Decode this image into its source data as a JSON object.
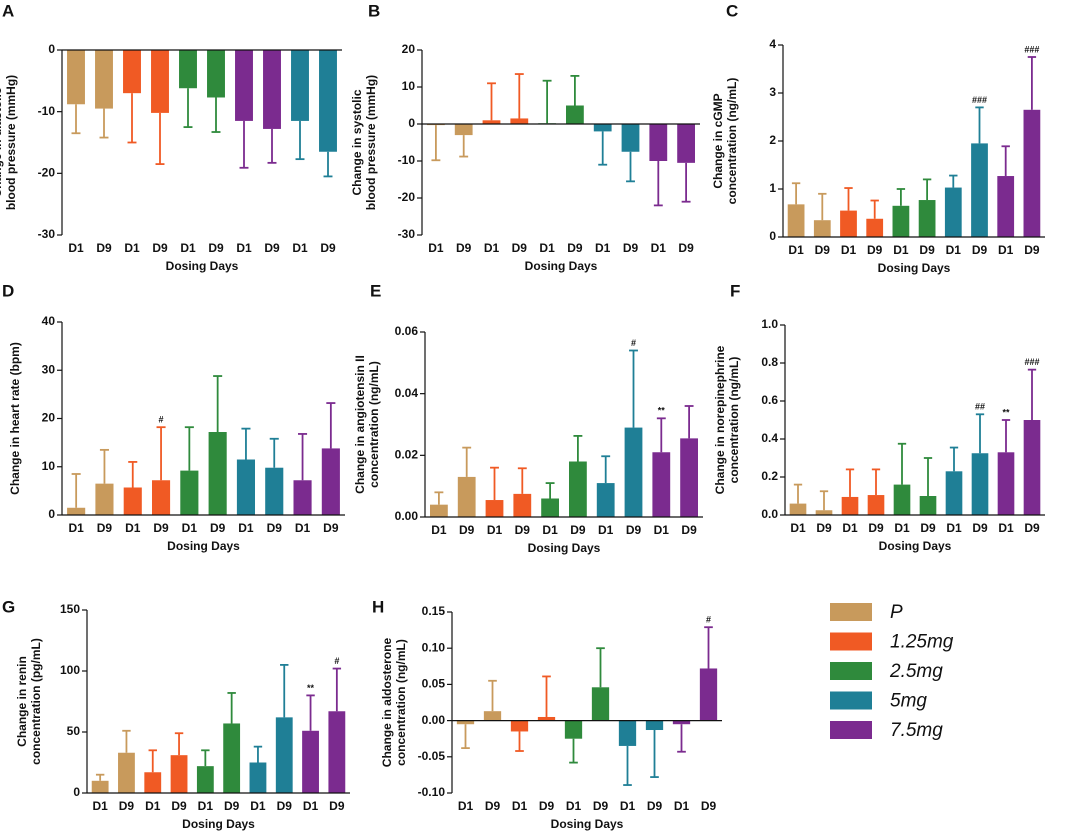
{
  "legend": [
    {
      "name": "P",
      "color": "#c89a5c"
    },
    {
      "name": "1.25mg",
      "color": "#f05a24"
    },
    {
      "name": "2.5mg",
      "color": "#2f8a3c"
    },
    {
      "name": "5mg",
      "color": "#1f7f96"
    },
    {
      "name": "7.5mg",
      "color": "#7b2b8f"
    }
  ],
  "chart_data": [
    {
      "type": "bar",
      "panel": "A",
      "ylabel": [
        "Change in diastolic",
        "blood pressure (mmHg)"
      ],
      "xlabel": "Dosing Days",
      "categories": [
        "D1",
        "D9",
        "D1",
        "D9",
        "D1",
        "D9",
        "D1",
        "D9",
        "D1",
        "D9"
      ],
      "values": [
        -8.8,
        -9.5,
        -7,
        -10.2,
        -6.2,
        -7.7,
        -11.5,
        -12.8,
        -11.5,
        -16.5
      ],
      "errors": [
        4.7,
        4.7,
        8,
        8.3,
        6.3,
        5.6,
        7.6,
        5.5,
        6.2,
        4
      ],
      "colors": [
        "#c89a5c",
        "#c89a5c",
        "#f05a24",
        "#f05a24",
        "#2f8a3c",
        "#2f8a3c",
        "#7b2b8f",
        "#7b2b8f",
        "#1f7f96",
        "#1f7f96"
      ],
      "annotations": [
        null,
        null,
        null,
        null,
        null,
        null,
        null,
        null,
        null,
        null
      ],
      "ylim": [
        -30,
        0
      ],
      "yticks": [
        0,
        -10,
        -20,
        -30
      ]
    },
    {
      "type": "bar",
      "panel": "B",
      "ylabel": [
        "Change in systolic",
        "blood pressure (mmHg)"
      ],
      "xlabel": "Dosing Days",
      "categories": [
        "D1",
        "D9",
        "D1",
        "D9",
        "D1",
        "D9",
        "D1",
        "D9",
        "D1",
        "D9"
      ],
      "values": [
        -0.3,
        -3,
        1,
        1.5,
        0.2,
        5,
        -2,
        -7.5,
        -10,
        -10.5
      ],
      "errors": [
        9.5,
        5.8,
        10,
        12,
        11.5,
        8,
        9,
        8,
        12,
        10.5
      ],
      "colors": [
        "#c89a5c",
        "#c89a5c",
        "#f05a24",
        "#f05a24",
        "#2f8a3c",
        "#2f8a3c",
        "#1f7f96",
        "#1f7f96",
        "#7b2b8f",
        "#7b2b8f"
      ],
      "annotations": [
        null,
        null,
        null,
        null,
        null,
        null,
        null,
        null,
        null,
        null
      ],
      "ylim": [
        -30,
        20
      ],
      "yticks": [
        20,
        10,
        0,
        -10,
        -20,
        -30
      ]
    },
    {
      "type": "bar",
      "panel": "C",
      "ylabel": [
        "Change in cGMP",
        "concentration (ng/mL)"
      ],
      "xlabel": "Dosing Days",
      "categories": [
        "D1",
        "D9",
        "D1",
        "D9",
        "D1",
        "D9",
        "D1",
        "D9",
        "D1",
        "D9"
      ],
      "values": [
        0.68,
        0.35,
        0.55,
        0.38,
        0.65,
        0.77,
        1.03,
        1.95,
        1.27,
        2.65
      ],
      "errors": [
        0.44,
        0.55,
        0.47,
        0.38,
        0.35,
        0.43,
        0.25,
        0.75,
        0.62,
        1.1
      ],
      "colors": [
        "#c89a5c",
        "#c89a5c",
        "#f05a24",
        "#f05a24",
        "#2f8a3c",
        "#2f8a3c",
        "#1f7f96",
        "#1f7f96",
        "#7b2b8f",
        "#7b2b8f"
      ],
      "annotations": [
        null,
        null,
        null,
        null,
        null,
        null,
        null,
        "###",
        null,
        "###"
      ],
      "ylim": [
        0,
        4
      ],
      "yticks": [
        0,
        1,
        2,
        3,
        4
      ]
    },
    {
      "type": "bar",
      "panel": "D",
      "ylabel": [
        "Change in heart rate (bpm)"
      ],
      "xlabel": "Dosing Days",
      "categories": [
        "D1",
        "D9",
        "D1",
        "D9",
        "D1",
        "D9",
        "D1",
        "D9",
        "D1",
        "D9"
      ],
      "values": [
        1.5,
        6.5,
        5.7,
        7.2,
        9.2,
        17.2,
        11.5,
        9.8,
        7.2,
        13.8
      ],
      "errors": [
        7,
        7,
        5.3,
        11,
        9,
        11.6,
        6.4,
        6,
        9.6,
        9.4
      ],
      "colors": [
        "#c89a5c",
        "#c89a5c",
        "#f05a24",
        "#f05a24",
        "#2f8a3c",
        "#2f8a3c",
        "#1f7f96",
        "#1f7f96",
        "#7b2b8f",
        "#7b2b8f"
      ],
      "annotations": [
        null,
        null,
        null,
        "#",
        null,
        null,
        null,
        null,
        null,
        null
      ],
      "ylim": [
        0,
        40
      ],
      "yticks": [
        0,
        10,
        20,
        30,
        40
      ]
    },
    {
      "type": "bar",
      "panel": "E",
      "ylabel": [
        "Change in angiotensin II",
        "concentration (ng/mL)"
      ],
      "xlabel": "Dosing Days",
      "categories": [
        "D1",
        "D9",
        "D1",
        "D9",
        "D1",
        "D9",
        "D1",
        "D9",
        "D1",
        "D9"
      ],
      "values": [
        0.004,
        0.013,
        0.0055,
        0.0075,
        0.006,
        0.018,
        0.011,
        0.029,
        0.021,
        0.0255
      ],
      "errors": [
        0.004,
        0.0095,
        0.0105,
        0.0083,
        0.005,
        0.0083,
        0.0087,
        0.025,
        0.011,
        0.0105
      ],
      "colors": [
        "#c89a5c",
        "#c89a5c",
        "#f05a24",
        "#f05a24",
        "#2f8a3c",
        "#2f8a3c",
        "#1f7f96",
        "#1f7f96",
        "#7b2b8f",
        "#7b2b8f"
      ],
      "annotations": [
        null,
        null,
        null,
        null,
        null,
        null,
        null,
        "#",
        "**",
        null
      ],
      "ylim": [
        0,
        0.06
      ],
      "yticks": [
        {
          "value": 0,
          "label": "0.00"
        },
        {
          "value": 0.02,
          "label": "0.02"
        },
        {
          "value": 0.04,
          "label": "0.04"
        },
        {
          "value": 0.06,
          "label": "0.06"
        }
      ]
    },
    {
      "type": "bar",
      "panel": "F",
      "ylabel": [
        "Change in norepinephrine",
        "concentration (ng/mL)"
      ],
      "xlabel": "Dosing Days",
      "categories": [
        "D1",
        "D9",
        "D1",
        "D9",
        "D1",
        "D9",
        "D1",
        "D9",
        "D1",
        "D9"
      ],
      "values": [
        0.06,
        0.025,
        0.095,
        0.105,
        0.16,
        0.1,
        0.23,
        0.325,
        0.33,
        0.5
      ],
      "errors": [
        0.1,
        0.1,
        0.145,
        0.135,
        0.215,
        0.2,
        0.125,
        0.205,
        0.17,
        0.265
      ],
      "colors": [
        "#c89a5c",
        "#c89a5c",
        "#f05a24",
        "#f05a24",
        "#2f8a3c",
        "#2f8a3c",
        "#1f7f96",
        "#1f7f96",
        "#7b2b8f",
        "#7b2b8f"
      ],
      "annotations": [
        null,
        null,
        null,
        null,
        null,
        null,
        null,
        "##",
        "**",
        "###"
      ],
      "ylim": [
        0,
        1
      ],
      "yticks": [
        {
          "value": 0,
          "label": "0.0"
        },
        0.2,
        0.4,
        0.6,
        0.8,
        {
          "value": 1,
          "label": "1.0"
        }
      ]
    },
    {
      "type": "bar",
      "panel": "G",
      "ylabel": [
        "Change in renin",
        "concentration (pg/mL)"
      ],
      "xlabel": "Dosing Days",
      "categories": [
        "D1",
        "D9",
        "D1",
        "D9",
        "D1",
        "D9",
        "D1",
        "D9",
        "D1",
        "D9"
      ],
      "values": [
        10,
        33,
        17,
        31,
        22,
        57,
        25,
        62,
        51,
        67
      ],
      "errors": [
        5,
        18,
        18,
        18,
        13,
        25,
        13,
        43,
        29,
        35
      ],
      "colors": [
        "#c89a5c",
        "#c89a5c",
        "#f05a24",
        "#f05a24",
        "#2f8a3c",
        "#2f8a3c",
        "#1f7f96",
        "#1f7f96",
        "#7b2b8f",
        "#7b2b8f"
      ],
      "annotations": [
        null,
        null,
        null,
        null,
        null,
        null,
        null,
        null,
        "**",
        "#"
      ],
      "ylim": [
        0,
        150
      ],
      "yticks": [
        0,
        50,
        100,
        150
      ]
    },
    {
      "type": "bar",
      "panel": "H",
      "ylabel": [
        "Change in aldosterone",
        "concentration (ng/mL)"
      ],
      "xlabel": "Dosing Days",
      "categories": [
        "D1",
        "D9",
        "D1",
        "D9",
        "D1",
        "D9",
        "D1",
        "D9",
        "D1",
        "D9"
      ],
      "values": [
        -0.005,
        0.013,
        -0.015,
        0.005,
        -0.025,
        0.046,
        -0.035,
        -0.013,
        -0.005,
        0.072
      ],
      "errors": [
        0.033,
        0.042,
        0.027,
        0.056,
        0.033,
        0.054,
        0.054,
        0.065,
        0.038,
        0.057
      ],
      "colors": [
        "#c89a5c",
        "#c89a5c",
        "#f05a24",
        "#f05a24",
        "#2f8a3c",
        "#2f8a3c",
        "#1f7f96",
        "#1f7f96",
        "#7b2b8f",
        "#7b2b8f"
      ],
      "annotations": [
        null,
        null,
        null,
        null,
        null,
        null,
        null,
        null,
        null,
        "#"
      ],
      "ylim": [
        -0.1,
        0.15
      ],
      "yticks": [
        0.15,
        {
          "value": 0.1,
          "label": "0.10"
        },
        0.05,
        {
          "value": 0,
          "label": "0.00"
        },
        {
          "value": -0.05,
          "label": "-0.05"
        },
        {
          "value": -0.1,
          "label": "-0.10"
        }
      ]
    }
  ]
}
